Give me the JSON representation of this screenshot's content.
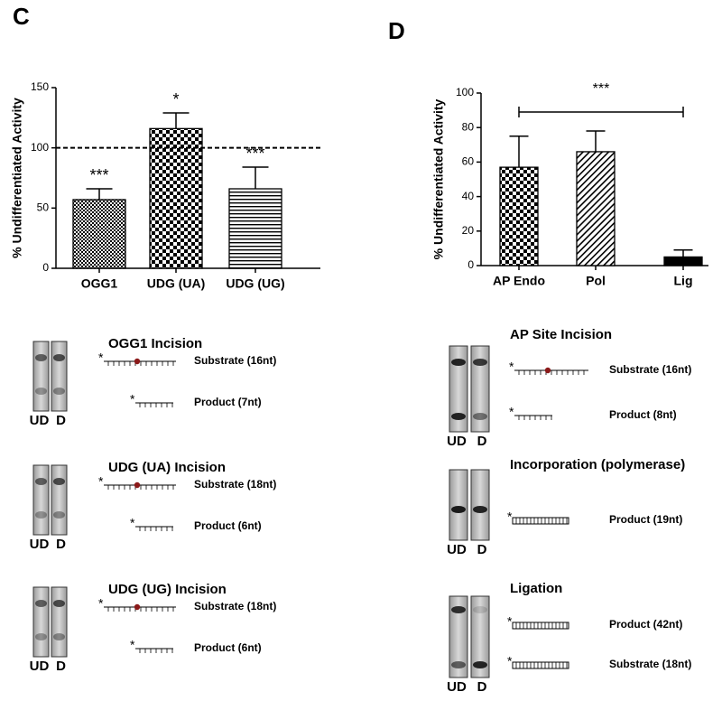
{
  "panel_labels": [
    "C",
    "D"
  ],
  "radiolabel": "*",
  "chart_data": [
    {
      "type": "bar",
      "y_label": "% Undifferentiated Activity",
      "categories": [
        "OGG1",
        "UDG (UA)",
        "UDG (UG)"
      ],
      "values": [
        57,
        116,
        66
      ],
      "errors": [
        9,
        13,
        18
      ],
      "annotations": [
        "***",
        "*",
        "***"
      ],
      "patterns": [
        "fine-check",
        "check",
        "h-stripes"
      ],
      "color": "#000000",
      "reference_line": 100,
      "ylim": [
        0,
        150
      ],
      "yticks": [
        0,
        50,
        100,
        150
      ]
    },
    {
      "type": "bar",
      "y_label": "% Undifferentiated Activity",
      "categories": [
        "AP Endo",
        "Pol",
        "Lig"
      ],
      "values": [
        57,
        66,
        5
      ],
      "errors": [
        18,
        12,
        4
      ],
      "annotation": "***",
      "patterns": [
        "check",
        "diagonal",
        "solid"
      ],
      "color": "#000000",
      "ylim": [
        0,
        100
      ],
      "yticks": [
        0,
        20,
        40,
        60,
        80,
        100
      ]
    }
  ],
  "gels_c": [
    {
      "title": "OGG1 Incision",
      "lanes": [
        "UD",
        "D"
      ],
      "bands": [
        "Substrate (16nt)",
        "Product (7nt)"
      ]
    },
    {
      "title": "UDG (UA) Incision",
      "lanes": [
        "UD",
        "D"
      ],
      "bands": [
        "Substrate (18nt)",
        "Product (6nt)"
      ]
    },
    {
      "title": "UDG (UG) Incision",
      "lanes": [
        "UD",
        "D"
      ],
      "bands": [
        "Substrate (18nt)",
        "Product (6nt)"
      ]
    }
  ],
  "gels_d": [
    {
      "title": "AP Site Incision",
      "lanes": [
        "UD",
        "D"
      ],
      "bands": [
        "Substrate (16nt)",
        "Product (8nt)"
      ]
    },
    {
      "title": "Incorporation (polymerase)",
      "lanes": [
        "UD",
        "D"
      ],
      "bands": [
        "Product (19nt)"
      ]
    },
    {
      "title": "Ligation",
      "lanes": [
        "UD",
        "D"
      ],
      "bands": [
        "Product (42nt)",
        "Substrate (18nt)"
      ]
    }
  ]
}
